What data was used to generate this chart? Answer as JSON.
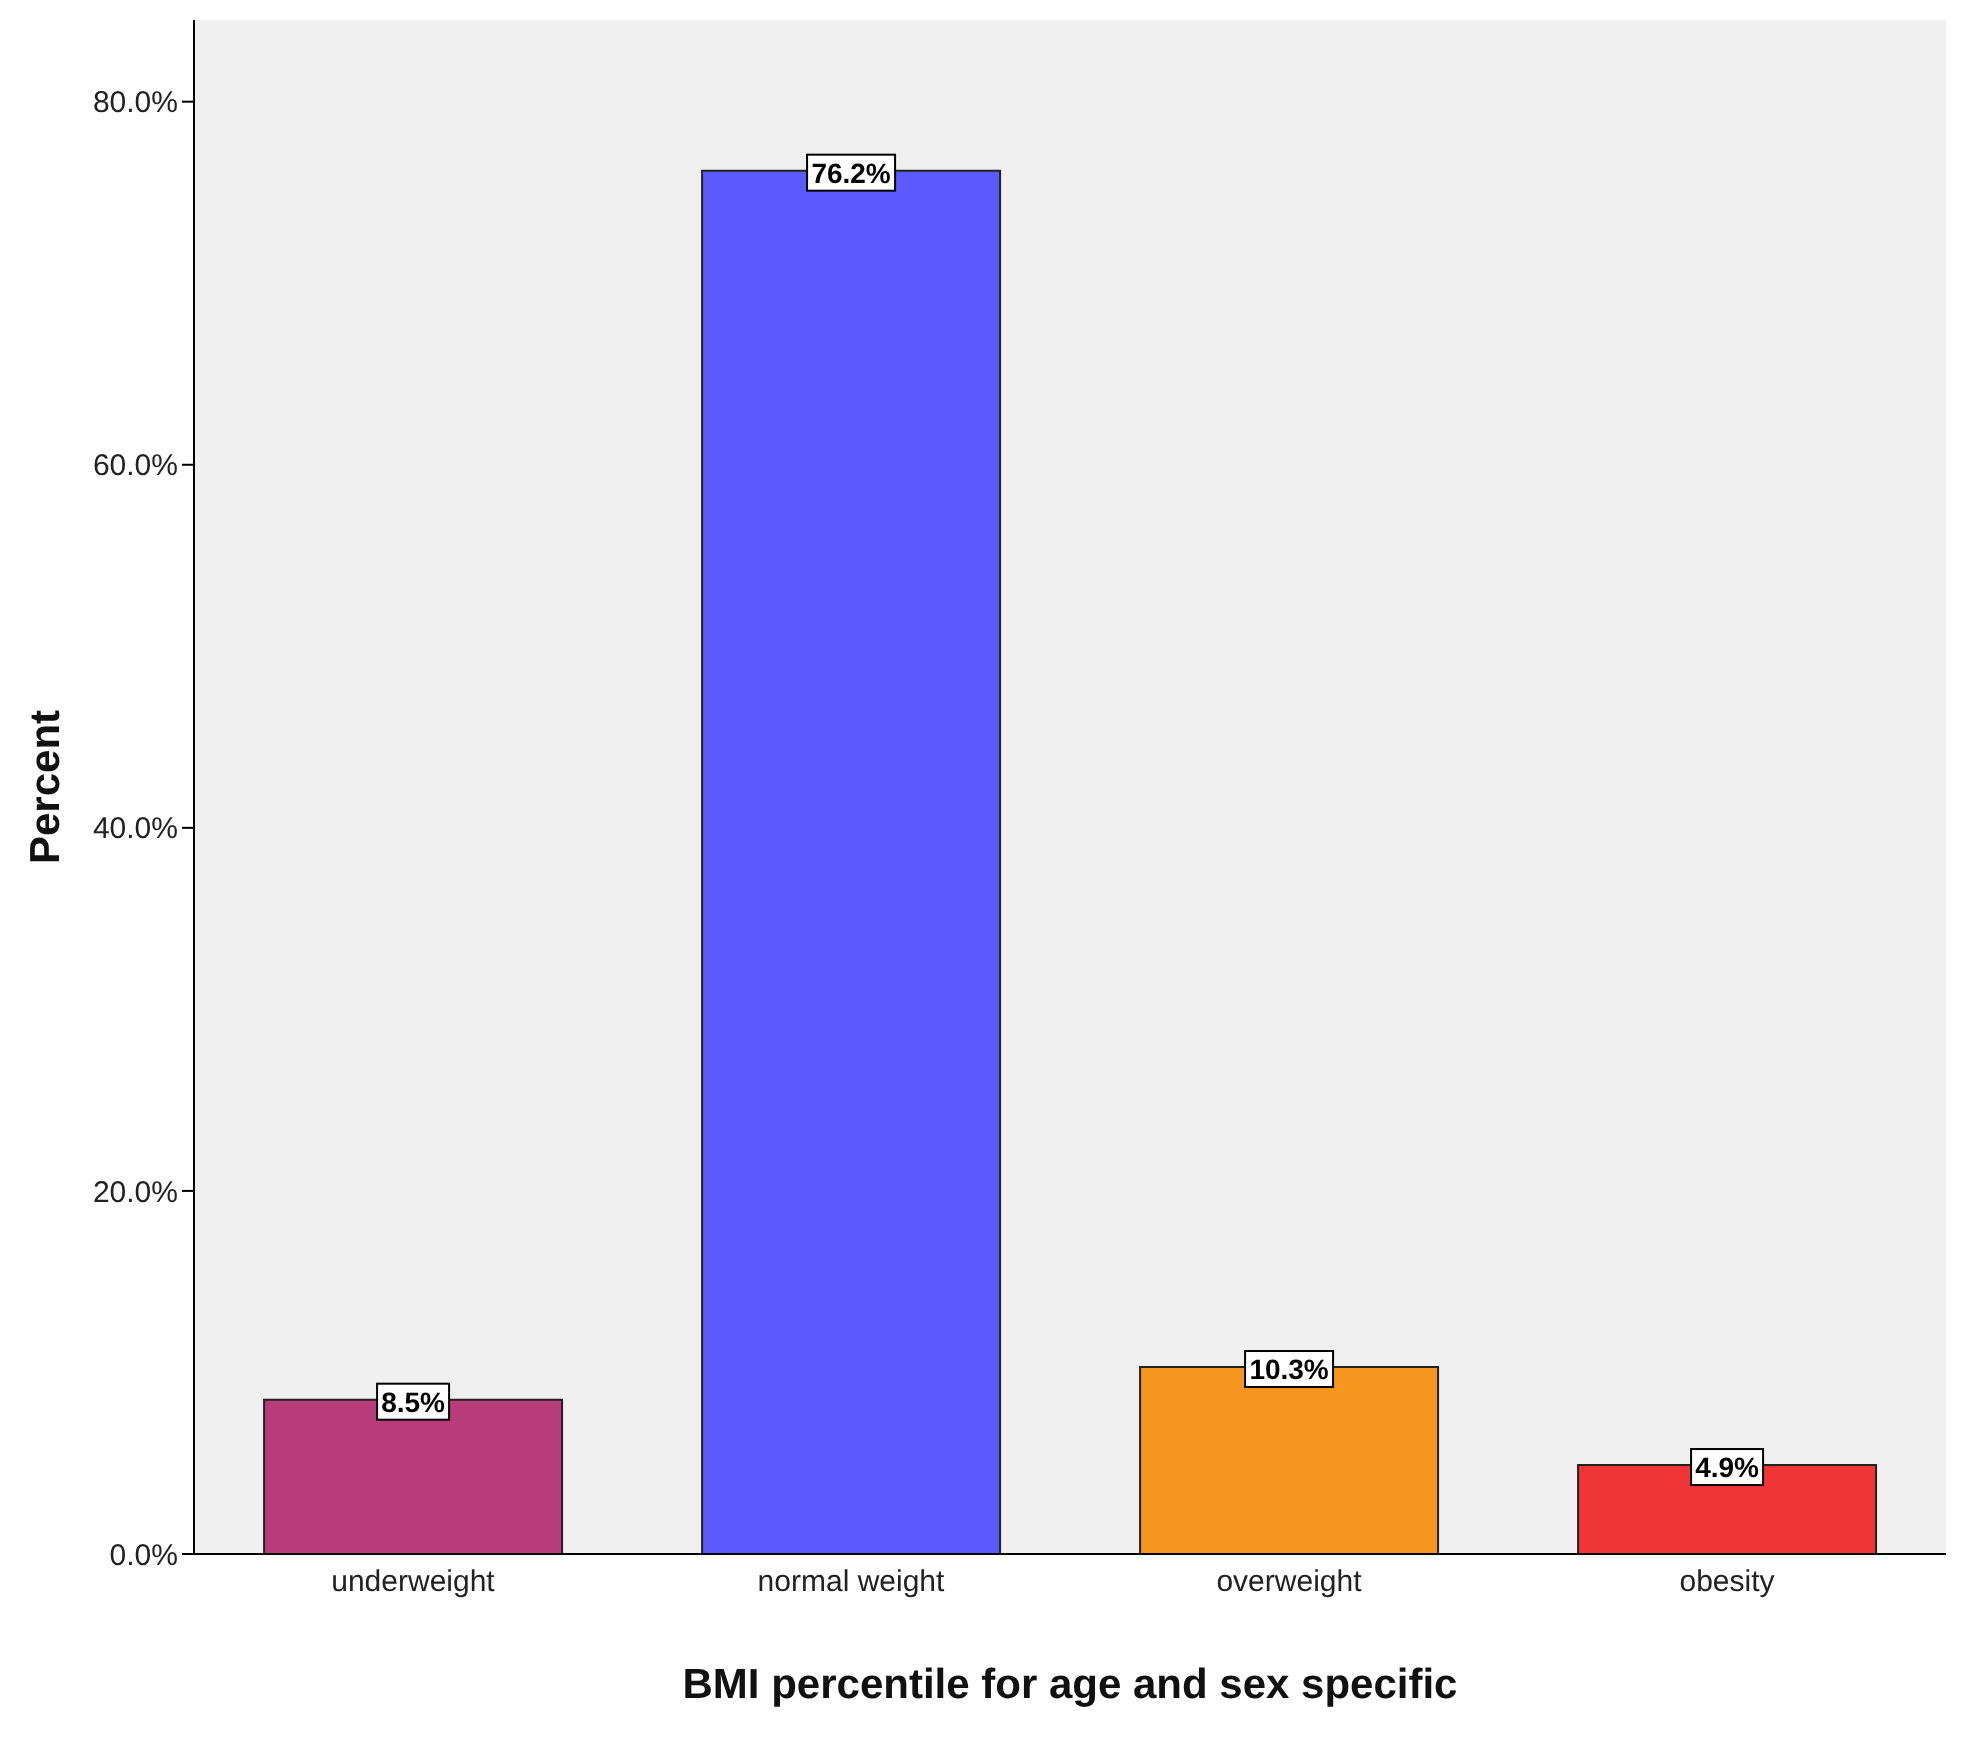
{
  "chart_data": {
    "type": "bar",
    "xlabel": "BMI percentile for age and sex specific",
    "ylabel": "Percent",
    "categories": [
      "underweight",
      "normal weight",
      "overweight",
      "obesity"
    ],
    "values": [
      8.5,
      76.2,
      10.3,
      4.9
    ],
    "colors": [
      "#b83b7a",
      "#5a5aff",
      "#f7961e",
      "#ef3535"
    ],
    "value_labels": [
      "8.5%",
      "76.2%",
      "10.3%",
      "4.9%"
    ],
    "ylim": [
      0,
      84.5
    ],
    "yticks": [
      {
        "value": 0,
        "label": "0.0%"
      },
      {
        "value": 20,
        "label": "20.0%"
      },
      {
        "value": 40,
        "label": "40.0%"
      },
      {
        "value": 60,
        "label": "60.0%"
      },
      {
        "value": 80,
        "label": "80.0%"
      }
    ],
    "grid": false
  }
}
